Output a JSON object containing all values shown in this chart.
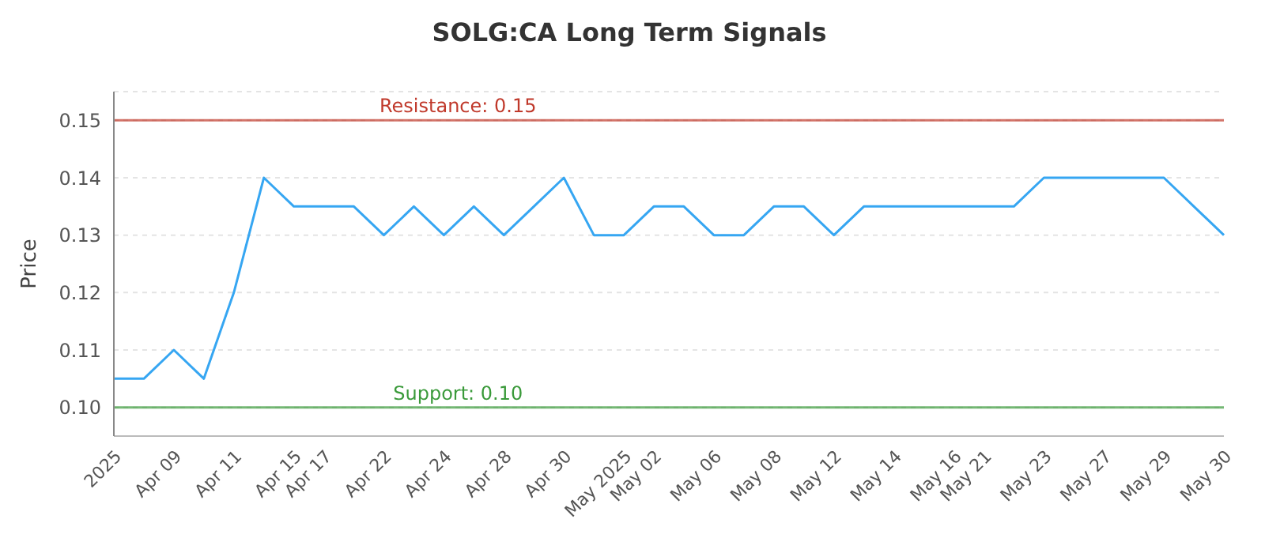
{
  "chart_data": {
    "type": "line",
    "title": "SOLG:CA Long Term Signals",
    "ylabel": "Price",
    "categories": [
      "2025",
      null,
      "Apr 09",
      null,
      "Apr 11",
      null,
      "Apr 15",
      "Apr 17",
      null,
      "Apr 22",
      null,
      "Apr 24",
      null,
      "Apr 28",
      null,
      "Apr 30",
      null,
      "May 2025",
      "May 02",
      null,
      "May 06",
      null,
      "May 08",
      null,
      "May 12",
      null,
      "May 14",
      null,
      "May 16",
      "May 21",
      null,
      "May 23",
      null,
      "May 27",
      null,
      "May 29",
      null,
      "May 30"
    ],
    "series": [
      {
        "color": "#36a6f2",
        "values": [
          0.105,
          0.105,
          0.11,
          0.105,
          0.12,
          0.14,
          0.135,
          0.135,
          0.135,
          0.13,
          0.135,
          0.13,
          0.135,
          0.13,
          0.135,
          0.14,
          0.13,
          0.13,
          0.135,
          0.135,
          0.13,
          0.13,
          0.135,
          0.135,
          0.13,
          0.135,
          0.135,
          0.135,
          0.135,
          0.135,
          0.135,
          0.14,
          0.14,
          0.14,
          0.14,
          0.14,
          0.135,
          0.13
        ]
      }
    ],
    "ylim": [
      0.095,
      0.155
    ],
    "yticks": [
      {
        "value": 0.1,
        "label": "0.10"
      },
      0.11,
      0.12,
      0.13,
      0.14,
      0.15
    ],
    "grid": "y",
    "marker": "none",
    "line_style": "solid",
    "legend": false,
    "ref_lines": [
      {
        "axis": "y",
        "value": 0.15,
        "label": "Resistance: 0.15",
        "color": "#c0392b"
      },
      {
        "axis": "y",
        "value": 0.1,
        "label": "Support: 0.10",
        "color": "#3a9a3a"
      }
    ]
  }
}
